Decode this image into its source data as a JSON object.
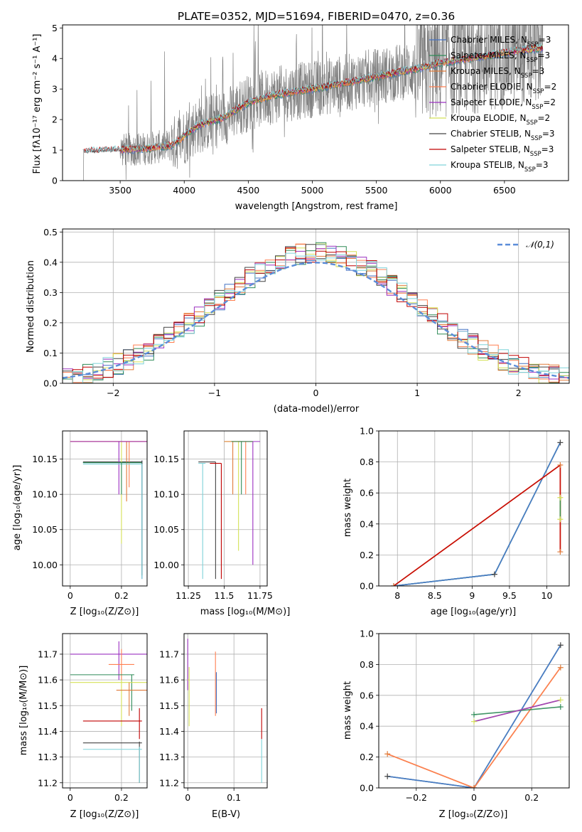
{
  "figure": {
    "title": "PLATE=0352, MJD=51694, FIBERID=0470, z=0.36"
  },
  "colors": {
    "data_spectrum": "#808080",
    "models": [
      "#4472c4",
      "#2e8b57",
      "#e07b39",
      "#ff7f50",
      "#9b30c0",
      "#d4e157",
      "#444444",
      "#c00000",
      "#7fd3d9"
    ],
    "gaussian": "#5b8dd9"
  },
  "chart_data": [
    {
      "id": "spectrum",
      "type": "line",
      "xlabel": "wavelength [Angstrom, rest frame]",
      "ylabel": "Flux [fλ10⁻¹⁷ erg cm⁻² s⁻¹ A⁻¹]",
      "xlim": [
        3050,
        7000
      ],
      "ylim": [
        0,
        5.1
      ],
      "xticks": [
        3500,
        4000,
        4500,
        5000,
        5500,
        6000,
        6500
      ],
      "yticks": [
        0,
        1,
        2,
        3,
        4,
        5
      ],
      "grid": false,
      "legend_position": "top-right",
      "legend": [
        "Chabrier MILES, N_SSP=3",
        "Salpeter MILES, N_SSP=3",
        "Kroupa MILES, N_SSP=3",
        "Chabrier ELODIE, N_SSP=2",
        "Salpeter ELODIE, N_SSP=2",
        "Kroupa ELODIE, N_SSP=2",
        "Chabrier STELIB, N_SSP=3",
        "Salpeter STELIB, N_SSP=3",
        "Kroupa STELIB, N_SSP=3"
      ],
      "model_trend": {
        "x": [
          3200,
          3500,
          3700,
          3900,
          4000,
          4100,
          4300,
          4500,
          4700,
          5000,
          5200,
          5500,
          5800,
          6000,
          6300,
          6600,
          6800
        ],
        "y": [
          0.95,
          1.0,
          1.05,
          1.15,
          1.45,
          1.8,
          2.05,
          2.55,
          2.8,
          3.0,
          3.15,
          3.4,
          3.65,
          3.85,
          4.05,
          4.25,
          4.35
        ]
      }
    },
    {
      "id": "residuals",
      "type": "line",
      "xlabel": "(data-model)/error",
      "ylabel": "Normed distribution",
      "xlim": [
        -2.5,
        2.5
      ],
      "ylim": [
        0,
        0.51
      ],
      "xticks": [
        -2,
        -1,
        0,
        1,
        2
      ],
      "yticks": [
        0.0,
        0.1,
        0.2,
        0.3,
        0.4,
        0.5
      ],
      "grid": true,
      "legend_position": "top-right",
      "legend": [
        "𝒩(0,1)"
      ],
      "gaussian": {
        "mean": 0,
        "sigma": 1
      }
    },
    {
      "id": "age_vs_Z",
      "type": "scatter",
      "xlabel": "Z [log₁₀(Z/Z⊙)]",
      "ylabel": "age  [log₁₀(age/yr)]",
      "xlim": [
        -0.03,
        0.3
      ],
      "ylim": [
        9.97,
        10.19
      ],
      "xticks": [
        0.0,
        0.2
      ],
      "yticks": [
        10.0,
        10.05,
        10.1,
        10.15
      ],
      "grid": true,
      "points": [
        {
          "x": 0.05,
          "y": 10.145,
          "xerr": [
            0.05,
            0.28
          ],
          "yerr": [
            10.1,
            10.145
          ]
        },
        {
          "x": 0.0,
          "y": 10.175,
          "xerr": [
            0.0,
            0.3
          ],
          "yerr": [
            10.035,
            10.175
          ]
        },
        {
          "x": 0.22,
          "y": 10.175,
          "xerr": [
            0.2,
            0.23
          ],
          "yerr": [
            10.09,
            10.175
          ]
        },
        {
          "x": 0.05,
          "y": 10.142,
          "xerr": [
            0.05,
            0.28
          ],
          "yerr": [
            9.98,
            10.142
          ]
        }
      ]
    },
    {
      "id": "age_vs_mass",
      "type": "scatter",
      "xlabel": "mass [log₁₀(M/M⊙)]",
      "ylabel": "",
      "xlim": [
        11.22,
        11.8
      ],
      "ylim": [
        9.97,
        10.19
      ],
      "xticks": [
        11.25,
        11.5,
        11.75
      ],
      "yticks": [
        10.0,
        10.05,
        10.1,
        10.15
      ],
      "grid": true
    },
    {
      "id": "weight_vs_age",
      "type": "line",
      "xlabel": "age  [log₁₀(age/yr)]",
      "ylabel": "mass weight",
      "xlim": [
        7.75,
        10.3
      ],
      "ylim": [
        0,
        1.0
      ],
      "xticks": [
        8.0,
        8.5,
        9.0,
        9.5,
        10.0
      ],
      "yticks": [
        0.0,
        0.2,
        0.4,
        0.6,
        0.8,
        1.0
      ],
      "grid": true,
      "series": [
        {
          "x": [
            7.95,
            9.3,
            10.18
          ],
          "y": [
            0.0,
            0.075,
            0.925
          ]
        },
        {
          "x": [
            7.95,
            10.18,
            10.18
          ],
          "y": [
            0.0,
            0.78,
            0.22
          ]
        },
        {
          "x": [
            10.18,
            10.18
          ],
          "y": [
            0.43,
            0.57
          ]
        }
      ]
    },
    {
      "id": "mass_vs_Z",
      "type": "scatter",
      "xlabel": "Z [log₁₀(Z/Z⊙)]",
      "ylabel": "mass [log₁₀(M/M⊙)]",
      "xlim": [
        -0.03,
        0.3
      ],
      "ylim": [
        11.18,
        11.78
      ],
      "xticks": [
        0.0,
        0.2
      ],
      "yticks": [
        11.2,
        11.3,
        11.4,
        11.5,
        11.6,
        11.7
      ],
      "grid": true
    },
    {
      "id": "mass_vs_ebv",
      "type": "scatter",
      "xlabel": "E(B-V)",
      "ylabel": "",
      "xlim": [
        -0.008,
        0.172
      ],
      "ylim": [
        11.18,
        11.78
      ],
      "xticks": [
        0.0,
        0.1
      ],
      "yticks": [
        11.2,
        11.3,
        11.4,
        11.5,
        11.6,
        11.7
      ],
      "grid": true
    },
    {
      "id": "weight_vs_Z",
      "type": "line",
      "xlabel": "Z [log₁₀(Z/Z⊙)]",
      "ylabel": "mass weight",
      "xlim": [
        -0.33,
        0.33
      ],
      "ylim": [
        0,
        1.0
      ],
      "xticks": [
        -0.2,
        0.0,
        0.2
      ],
      "yticks": [
        0.0,
        0.2,
        0.4,
        0.6,
        0.8,
        1.0
      ],
      "grid": true,
      "series": [
        {
          "x": [
            -0.3,
            0.0,
            0.3
          ],
          "y": [
            0.075,
            0.0,
            0.925
          ]
        },
        {
          "x": [
            -0.3,
            0.0,
            0.3
          ],
          "y": [
            0.22,
            0.0,
            0.78
          ]
        },
        {
          "x": [
            0.0,
            0.3
          ],
          "y": [
            0.475,
            0.525
          ]
        },
        {
          "x": [
            0.0,
            0.3
          ],
          "y": [
            0.43,
            0.57
          ]
        }
      ]
    }
  ]
}
